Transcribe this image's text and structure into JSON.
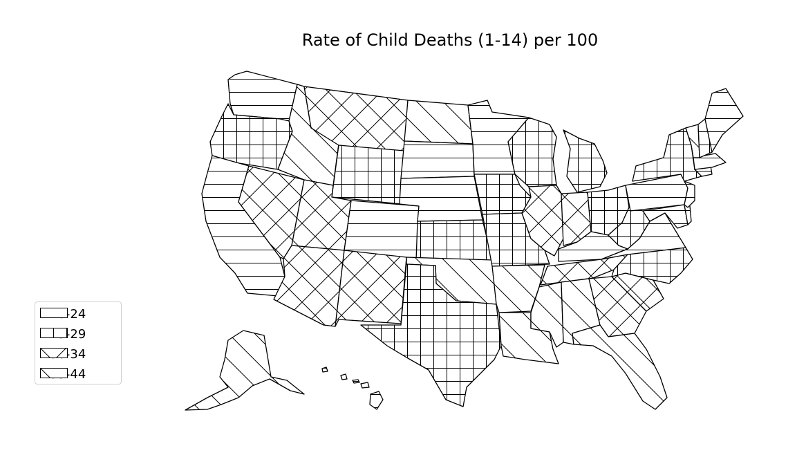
{
  "title": "Rate of Child Deaths (1-14) per 100",
  "legend": [
    {
      "label": "18-24",
      "hatch": "horizontal"
    },
    {
      "label": "25-29",
      "hatch": "grid"
    },
    {
      "label": "30-34",
      "hatch": "crosshatch"
    },
    {
      "label": "35-44",
      "hatch": "diagonal"
    }
  ],
  "states": {
    "WA": "18-24",
    "OR": "25-29",
    "CA": "18-24",
    "ID": "35-44",
    "NV": "30-34",
    "MT": "30-34",
    "WY": "25-29",
    "UT": "30-34",
    "AZ": "30-34",
    "CO": "18-24",
    "NM": "30-34",
    "ND": "35-44",
    "SD": "18-24",
    "NE": "18-24",
    "KS": "25-29",
    "OK": "35-44",
    "TX": "25-29",
    "MN": "18-24",
    "IA": "25-29",
    "MO": "25-29",
    "AR": "35-44",
    "LA": "35-44",
    "WI": "25-29",
    "IL": "30-34",
    "MI": "25-29",
    "IN": "30-34",
    "OH": "25-29",
    "KY": "18-24",
    "TN": "30-34",
    "MS": "35-44",
    "AL": "35-44",
    "GA": "30-34",
    "FL": "35-44",
    "SC": "30-34",
    "NC": "25-29",
    "VA": "18-24",
    "WV": "25-29",
    "PA": "18-24",
    "NY": "25-29",
    "VT": "35-44",
    "NH": "25-29",
    "ME": "18-24",
    "MA": "18-24",
    "CT": "18-24",
    "NJ": "18-24",
    "DE": "18-24",
    "MD": "18-24",
    "AK": "35-44",
    "HI": "18-24"
  }
}
